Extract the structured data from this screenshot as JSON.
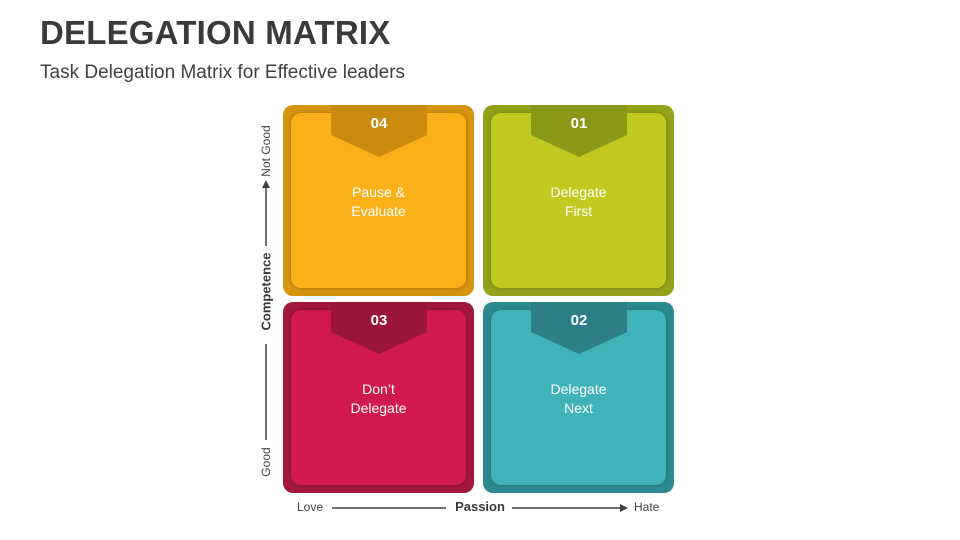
{
  "header": {
    "title": "DELEGATION MATRIX",
    "subtitle": "Task Delegation Matrix for Effective leaders"
  },
  "quadrants": [
    {
      "id": "04",
      "line1": "Pause &",
      "line2": "Evaluate",
      "outer": "#D7940F",
      "inner": "#F9B019",
      "tag": "#C98A0E"
    },
    {
      "id": "01",
      "line1": "Delegate",
      "line2": "First",
      "outer": "#94A21A",
      "inner": "#C3CA1F",
      "tag": "#8B9716"
    },
    {
      "id": "03",
      "line1": "Don’t",
      "line2": "Delegate",
      "outer": "#A3173A",
      "inner": "#D11A4B",
      "tag": "#9B1539"
    },
    {
      "id": "02",
      "line1": "Delegate",
      "line2": "Next",
      "outer": "#2E8A92",
      "inner": "#40B2BA",
      "tag": "#2C7F86"
    }
  ],
  "axes": {
    "y_title": "Competence",
    "y_top": "Not Good",
    "y_bottom": "Good",
    "x_title": "Passion",
    "x_left": "Love",
    "x_right": "Hate"
  },
  "colors": {
    "axis_line": "#404040"
  }
}
